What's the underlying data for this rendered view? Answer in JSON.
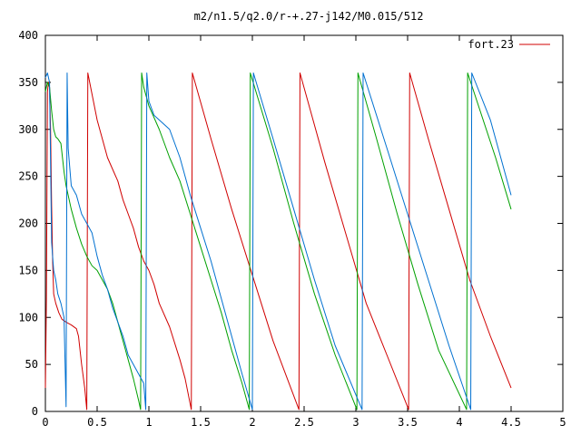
{
  "chart_data": {
    "type": "line",
    "title": "m2/n1.5/q2.0/r-+.27-j142/M0.015/512",
    "xlabel": "",
    "ylabel": "",
    "xlim": [
      0,
      5
    ],
    "ylim": [
      0,
      400
    ],
    "xticks": [
      0,
      0.5,
      1,
      1.5,
      2,
      2.5,
      3,
      3.5,
      4,
      4.5,
      5
    ],
    "xtick_labels": [
      "0",
      "0.5",
      "1",
      "1.5",
      "2",
      "2.5",
      "3",
      "3.5",
      "4",
      "4.5",
      "5"
    ],
    "yticks": [
      0,
      50,
      100,
      150,
      200,
      250,
      300,
      350,
      400
    ],
    "ytick_labels": [
      "0",
      "50",
      "100",
      "150",
      "200",
      "250",
      "300",
      "350",
      "400"
    ],
    "grid": false,
    "legend_position": "top-right",
    "legend": [
      {
        "label": "fort.23",
        "color": "#d00000"
      }
    ],
    "series": [
      {
        "color": "#d00000",
        "points": [
          [
            0.0,
            25
          ],
          [
            0.01,
            120
          ],
          [
            0.02,
            340
          ],
          [
            0.03,
            350
          ],
          [
            0.04,
            345
          ],
          [
            0.05,
            300
          ],
          [
            0.06,
            220
          ],
          [
            0.07,
            160
          ],
          [
            0.08,
            125
          ],
          [
            0.1,
            115
          ],
          [
            0.13,
            105
          ],
          [
            0.16,
            98
          ],
          [
            0.2,
            95
          ],
          [
            0.25,
            92
          ],
          [
            0.3,
            88
          ],
          [
            0.32,
            80
          ],
          [
            0.35,
            50
          ],
          [
            0.38,
            25
          ],
          [
            0.4,
            2
          ],
          [
            0.41,
            360
          ],
          [
            0.5,
            310
          ],
          [
            0.6,
            270
          ],
          [
            0.7,
            245
          ],
          [
            0.75,
            225
          ],
          [
            0.8,
            210
          ],
          [
            0.85,
            195
          ],
          [
            0.9,
            175
          ],
          [
            0.95,
            160
          ],
          [
            1.0,
            150
          ],
          [
            1.05,
            135
          ],
          [
            1.1,
            115
          ],
          [
            1.2,
            90
          ],
          [
            1.3,
            55
          ],
          [
            1.35,
            35
          ],
          [
            1.41,
            2
          ],
          [
            1.42,
            360
          ],
          [
            1.6,
            290
          ],
          [
            1.8,
            215
          ],
          [
            2.0,
            145
          ],
          [
            2.2,
            75
          ],
          [
            2.45,
            2
          ],
          [
            2.46,
            360
          ],
          [
            2.7,
            265
          ],
          [
            2.9,
            190
          ],
          [
            3.1,
            115
          ],
          [
            3.3,
            60
          ],
          [
            3.51,
            2
          ],
          [
            3.52,
            360
          ],
          [
            3.7,
            290
          ],
          [
            3.9,
            215
          ],
          [
            4.1,
            140
          ],
          [
            4.3,
            80
          ],
          [
            4.5,
            25
          ]
        ]
      },
      {
        "color": "#00a000",
        "points": [
          [
            0.0,
            340
          ],
          [
            0.02,
            350
          ],
          [
            0.04,
            345
          ],
          [
            0.06,
            320
          ],
          [
            0.08,
            300
          ],
          [
            0.1,
            292
          ],
          [
            0.12,
            290
          ],
          [
            0.15,
            285
          ],
          [
            0.18,
            255
          ],
          [
            0.2,
            240
          ],
          [
            0.25,
            215
          ],
          [
            0.3,
            195
          ],
          [
            0.35,
            178
          ],
          [
            0.4,
            165
          ],
          [
            0.45,
            155
          ],
          [
            0.5,
            150
          ],
          [
            0.55,
            140
          ],
          [
            0.6,
            130
          ],
          [
            0.65,
            115
          ],
          [
            0.7,
            95
          ],
          [
            0.75,
            75
          ],
          [
            0.8,
            55
          ],
          [
            0.85,
            35
          ],
          [
            0.9,
            12
          ],
          [
            0.92,
            2
          ],
          [
            0.93,
            360
          ],
          [
            0.95,
            345
          ],
          [
            1.0,
            325
          ],
          [
            1.1,
            300
          ],
          [
            1.2,
            270
          ],
          [
            1.3,
            245
          ],
          [
            1.4,
            210
          ],
          [
            1.5,
            175
          ],
          [
            1.6,
            140
          ],
          [
            1.7,
            105
          ],
          [
            1.8,
            65
          ],
          [
            1.9,
            30
          ],
          [
            1.97,
            2
          ],
          [
            1.98,
            360
          ],
          [
            2.2,
            280
          ],
          [
            2.4,
            200
          ],
          [
            2.6,
            125
          ],
          [
            2.8,
            60
          ],
          [
            3.01,
            2
          ],
          [
            3.02,
            360
          ],
          [
            3.2,
            290
          ],
          [
            3.4,
            210
          ],
          [
            3.6,
            135
          ],
          [
            3.8,
            65
          ],
          [
            4.07,
            2
          ],
          [
            4.08,
            360
          ],
          [
            4.2,
            320
          ],
          [
            4.35,
            270
          ],
          [
            4.5,
            215
          ]
        ]
      },
      {
        "color": "#0070d0",
        "points": [
          [
            0.0,
            355
          ],
          [
            0.02,
            360
          ],
          [
            0.04,
            350
          ],
          [
            0.06,
            180
          ],
          [
            0.08,
            150
          ],
          [
            0.1,
            140
          ],
          [
            0.12,
            125
          ],
          [
            0.15,
            115
          ],
          [
            0.18,
            100
          ],
          [
            0.2,
            5
          ],
          [
            0.21,
            360
          ],
          [
            0.22,
            280
          ],
          [
            0.25,
            240
          ],
          [
            0.3,
            230
          ],
          [
            0.35,
            210
          ],
          [
            0.4,
            200
          ],
          [
            0.45,
            190
          ],
          [
            0.5,
            165
          ],
          [
            0.55,
            145
          ],
          [
            0.6,
            130
          ],
          [
            0.65,
            110
          ],
          [
            0.7,
            95
          ],
          [
            0.75,
            80
          ],
          [
            0.8,
            60
          ],
          [
            0.85,
            50
          ],
          [
            0.9,
            40
          ],
          [
            0.95,
            30
          ],
          [
            0.97,
            2
          ],
          [
            0.98,
            360
          ],
          [
            1.0,
            330
          ],
          [
            1.05,
            315
          ],
          [
            1.1,
            310
          ],
          [
            1.2,
            300
          ],
          [
            1.3,
            270
          ],
          [
            1.4,
            230
          ],
          [
            1.5,
            195
          ],
          [
            1.6,
            160
          ],
          [
            1.7,
            120
          ],
          [
            1.8,
            80
          ],
          [
            1.9,
            40
          ],
          [
            2.0,
            2
          ],
          [
            2.01,
            360
          ],
          [
            2.2,
            290
          ],
          [
            2.4,
            215
          ],
          [
            2.6,
            140
          ],
          [
            2.8,
            70
          ],
          [
            3.06,
            2
          ],
          [
            3.07,
            360
          ],
          [
            3.3,
            280
          ],
          [
            3.5,
            210
          ],
          [
            3.7,
            140
          ],
          [
            3.9,
            70
          ],
          [
            4.11,
            2
          ],
          [
            4.12,
            360
          ],
          [
            4.3,
            310
          ],
          [
            4.5,
            230
          ]
        ]
      }
    ]
  }
}
